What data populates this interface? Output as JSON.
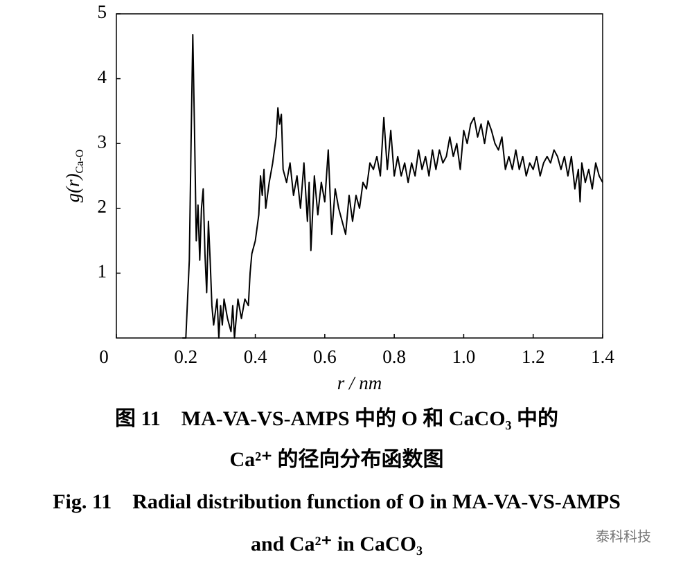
{
  "chart_data": {
    "type": "line",
    "xlabel": "r / nm",
    "ylabel": "g(r)",
    "ylabel_sub": "Ca-O",
    "caption_cn": [
      "图 11　MA-VA-VS-AMPS 中的 O 和 CaCO₃ 中的",
      "Ca²⁺ 的径向分布函数图"
    ],
    "caption_en": [
      "Fig. 11　Radial distribution function of O in MA-VA-VS-AMPS",
      "and Ca²⁺ in CaCO₃"
    ],
    "watermark": "泰科科技",
    "color": "#000000",
    "xlim": [
      0,
      1.4
    ],
    "ylim": [
      0,
      5
    ],
    "xticks": [
      0,
      0.2,
      0.4,
      0.6,
      0.8,
      {
        "value": 1,
        "label": "1.0"
      },
      1.2,
      1.4
    ],
    "yticks": [
      1,
      2,
      3,
      4,
      5
    ],
    "x": [
      0.19,
      0.2,
      0.21,
      0.215,
      0.22,
      0.225,
      0.23,
      0.235,
      0.24,
      0.245,
      0.25,
      0.255,
      0.26,
      0.265,
      0.27,
      0.275,
      0.28,
      0.285,
      0.29,
      0.295,
      0.3,
      0.305,
      0.31,
      0.32,
      0.33,
      0.335,
      0.34,
      0.345,
      0.35,
      0.36,
      0.37,
      0.38,
      0.385,
      0.39,
      0.4,
      0.41,
      0.415,
      0.42,
      0.425,
      0.43,
      0.44,
      0.45,
      0.46,
      0.465,
      0.47,
      0.475,
      0.48,
      0.49,
      0.5,
      0.51,
      0.52,
      0.53,
      0.54,
      0.55,
      0.555,
      0.56,
      0.57,
      0.58,
      0.59,
      0.6,
      0.61,
      0.62,
      0.63,
      0.64,
      0.65,
      0.66,
      0.67,
      0.68,
      0.69,
      0.7,
      0.71,
      0.72,
      0.73,
      0.74,
      0.75,
      0.76,
      0.77,
      0.78,
      0.79,
      0.8,
      0.81,
      0.82,
      0.83,
      0.84,
      0.85,
      0.86,
      0.87,
      0.88,
      0.89,
      0.9,
      0.91,
      0.92,
      0.93,
      0.94,
      0.95,
      0.96,
      0.97,
      0.98,
      0.99,
      1,
      1.01,
      1.02,
      1.03,
      1.04,
      1.05,
      1.06,
      1.07,
      1.08,
      1.09,
      1.1,
      1.11,
      1.12,
      1.13,
      1.14,
      1.15,
      1.16,
      1.17,
      1.18,
      1.19,
      1.2,
      1.21,
      1.22,
      1.23,
      1.24,
      1.25,
      1.26,
      1.27,
      1.28,
      1.29,
      1.3,
      1.31,
      1.32,
      1.33,
      1.335,
      1.34,
      1.35,
      1.36,
      1.37,
      1.38,
      1.39,
      1.4
    ],
    "values": [
      0,
      0,
      1.2,
      3.0,
      4.68,
      3.2,
      1.5,
      2.05,
      1.2,
      2.0,
      2.3,
      1.3,
      0.7,
      1.8,
      1.2,
      0.5,
      0.2,
      0.4,
      0.6,
      0,
      0.5,
      0.2,
      0.6,
      0.3,
      0.1,
      0.5,
      0,
      0.3,
      0.6,
      0.3,
      0.6,
      0.5,
      1.0,
      1.3,
      1.5,
      1.9,
      2.5,
      2.2,
      2.6,
      2.0,
      2.4,
      2.7,
      3.1,
      3.55,
      3.3,
      3.45,
      2.6,
      2.4,
      2.7,
      2.2,
      2.5,
      2.0,
      2.7,
      1.8,
      2.4,
      1.35,
      2.5,
      1.9,
      2.4,
      2.1,
      2.9,
      1.6,
      2.3,
      2.0,
      1.8,
      1.6,
      2.2,
      1.8,
      2.2,
      2.0,
      2.4,
      2.3,
      2.7,
      2.6,
      2.8,
      2.5,
      3.4,
      2.6,
      3.2,
      2.5,
      2.8,
      2.5,
      2.7,
      2.4,
      2.7,
      2.5,
      2.9,
      2.6,
      2.8,
      2.5,
      2.9,
      2.6,
      2.9,
      2.7,
      2.8,
      3.1,
      2.8,
      3.0,
      2.6,
      3.2,
      3.0,
      3.3,
      3.4,
      3.1,
      3.3,
      3.0,
      3.35,
      3.2,
      3.0,
      2.9,
      3.1,
      2.6,
      2.8,
      2.6,
      2.9,
      2.6,
      2.8,
      2.5,
      2.7,
      2.6,
      2.8,
      2.5,
      2.7,
      2.8,
      2.7,
      2.9,
      2.8,
      2.6,
      2.8,
      2.5,
      2.8,
      2.3,
      2.6,
      2.1,
      2.7,
      2.4,
      2.6,
      2.3,
      2.7,
      2.5,
      2.4
    ]
  }
}
